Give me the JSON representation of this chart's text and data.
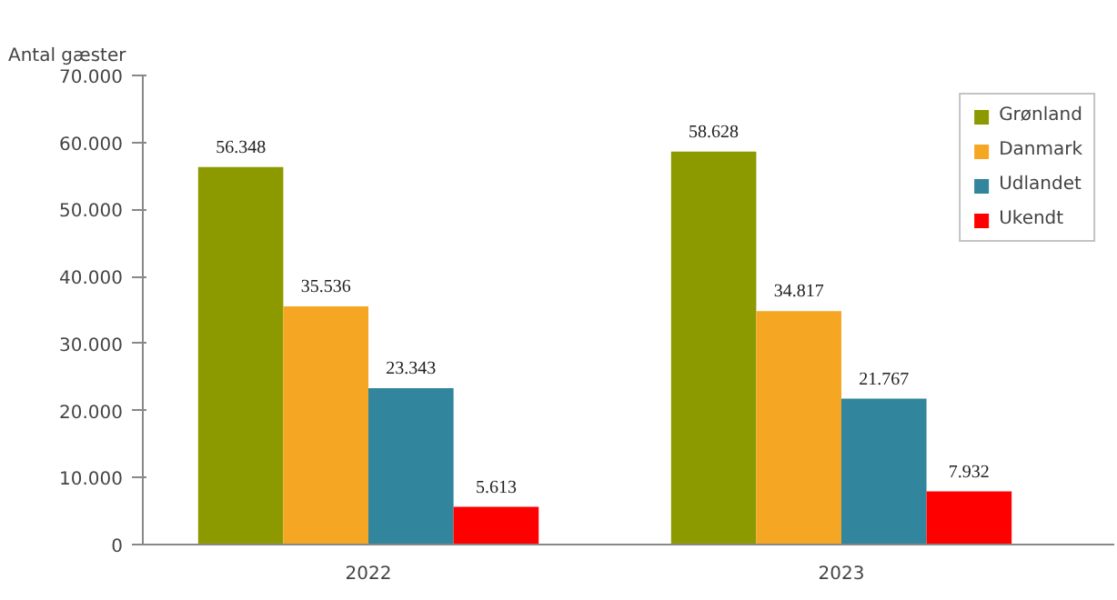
{
  "chart_data": {
    "type": "bar",
    "ylabel": "Antal gæster",
    "categories": [
      "2022",
      "2023"
    ],
    "series": [
      {
        "name": "Grønland",
        "color": "#8c9a00",
        "values": [
          56348,
          58628
        ],
        "value_labels": [
          "56.348",
          "58.628"
        ]
      },
      {
        "name": "Danmark",
        "color": "#f5a623",
        "values": [
          35536,
          34817
        ],
        "value_labels": [
          "35.536",
          "34.817"
        ]
      },
      {
        "name": "Udlandet",
        "color": "#31859c",
        "values": [
          23343,
          21767
        ],
        "value_labels": [
          "23.343",
          "21.767"
        ]
      },
      {
        "name": "Ukendt",
        "color": "#ff0000",
        "values": [
          5613,
          7932
        ],
        "value_labels": [
          "5.613",
          "7.932"
        ]
      }
    ],
    "ylim": [
      0,
      70000
    ],
    "yticks": [
      0,
      {
        "value": 10000,
        "label": "10.000"
      },
      {
        "value": 20000,
        "label": "20.000"
      },
      {
        "value": 30000,
        "label": "30.000"
      },
      {
        "value": 40000,
        "label": "40.000"
      },
      {
        "value": 50000,
        "label": "50.000"
      },
      {
        "value": 60000,
        "label": "60.000"
      },
      {
        "value": 70000,
        "label": "70.000"
      }
    ],
    "grid": false,
    "legend": "top right"
  }
}
